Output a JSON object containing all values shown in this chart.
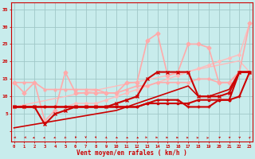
{
  "xlabel": "Vent moyen/en rafales ( km/h )",
  "bg_color": "#c8ecec",
  "grid_color": "#a0c8c8",
  "x": [
    0,
    1,
    2,
    3,
    4,
    5,
    6,
    7,
    8,
    9,
    10,
    11,
    12,
    13,
    14,
    15,
    16,
    17,
    18,
    19,
    20,
    21,
    22,
    23
  ],
  "ylim": [
    -3,
    37
  ],
  "xlim": [
    -0.3,
    23.3
  ],
  "series": [
    {
      "y": [
        7,
        7.6,
        8.2,
        8.8,
        9.4,
        10,
        10.6,
        11.2,
        11.8,
        12.4,
        13,
        13.6,
        14.2,
        14.8,
        15.4,
        16,
        16.6,
        17.2,
        17.8,
        18.4,
        19,
        19.6,
        20.2,
        17
      ],
      "color": "#ffbbbb",
      "lw": 1.0,
      "marker": null,
      "ms": 0
    },
    {
      "y": [
        7,
        7,
        7,
        7,
        7,
        7,
        8,
        8,
        8,
        9,
        10,
        11,
        12,
        13,
        14,
        15,
        16,
        17,
        18,
        19,
        20,
        21,
        22,
        31
      ],
      "color": "#ffbbbb",
      "lw": 1.0,
      "marker": "D",
      "ms": 2
    },
    {
      "y": [
        14,
        11,
        14,
        3,
        6,
        17,
        11,
        11,
        11,
        11,
        11,
        14,
        14,
        26,
        28,
        16,
        17,
        25,
        25,
        24,
        14,
        14,
        17,
        31
      ],
      "color": "#ffaaaa",
      "lw": 1.2,
      "marker": "D",
      "ms": 2.5
    },
    {
      "y": [
        14,
        14,
        14,
        12,
        12,
        12,
        12,
        12,
        12,
        11,
        11,
        12,
        13,
        13,
        14,
        14,
        14,
        14,
        15,
        15,
        14,
        14,
        17,
        17
      ],
      "color": "#ffaaaa",
      "lw": 1.2,
      "marker": "o",
      "ms": 2.0
    },
    {
      "y": [
        7,
        7,
        7,
        7,
        7,
        7,
        7,
        7,
        7,
        7,
        7,
        7,
        7,
        8,
        8,
        8,
        8,
        8,
        9,
        9,
        9,
        9,
        17,
        17
      ],
      "color": "#cc0000",
      "lw": 1.5,
      "marker": "s",
      "ms": 2.0
    },
    {
      "y": [
        7,
        7,
        7,
        7,
        7,
        7,
        7,
        7,
        7,
        7,
        7,
        7,
        7,
        8,
        9,
        9,
        9,
        7,
        7,
        7,
        9,
        9,
        10,
        17
      ],
      "color": "#cc0000",
      "lw": 1.5,
      "marker": "+",
      "ms": 3
    },
    {
      "y": [
        7,
        7,
        7,
        2,
        5,
        6,
        7,
        7,
        7,
        7,
        8,
        9,
        10,
        15,
        17,
        17,
        17,
        17,
        10,
        10,
        10,
        11,
        17,
        17
      ],
      "color": "#cc0000",
      "lw": 1.5,
      "marker": "x",
      "ms": 3
    },
    {
      "y": [
        1,
        1.5,
        2,
        2.5,
        3,
        3.5,
        4,
        4.5,
        5,
        5.5,
        6,
        7,
        8,
        9,
        10,
        11,
        12,
        13,
        10,
        10,
        11,
        12,
        17,
        17
      ],
      "color": "#cc0000",
      "lw": 1.2,
      "marker": null,
      "ms": 0
    }
  ],
  "wind_arrows": [
    -160,
    -150,
    -140,
    -130,
    -120,
    -110,
    -100,
    -90,
    -80,
    -70,
    -60,
    -50,
    -40,
    -30,
    -20,
    -10,
    0,
    10,
    20,
    30,
    40,
    50,
    60,
    70
  ],
  "yticks": [
    0,
    5,
    10,
    15,
    20,
    25,
    30,
    35
  ]
}
